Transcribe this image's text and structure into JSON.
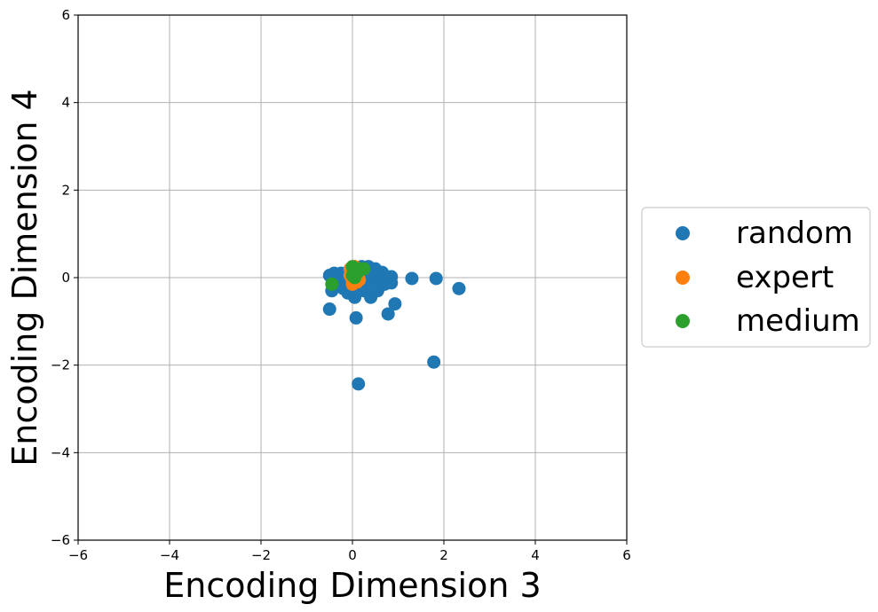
{
  "chart_data": {
    "type": "scatter",
    "xlabel": "Encoding Dimension 3",
    "ylabel": "Encoding Dimension 4",
    "xlim": [
      -6,
      6
    ],
    "ylim": [
      -6,
      6
    ],
    "xticks": [
      -6,
      -4,
      -2,
      0,
      2,
      4,
      6
    ],
    "yticks": [
      -6,
      -4,
      -2,
      0,
      2,
      4,
      6
    ],
    "grid": true,
    "legend_placement": "outside-right",
    "series": [
      {
        "name": "random",
        "color": "#1f77b4",
        "points": [
          [
            -0.5,
            0.05
          ],
          [
            -0.4,
            0.1
          ],
          [
            -0.35,
            -0.05
          ],
          [
            -0.3,
            0.0
          ],
          [
            -0.25,
            0.1
          ],
          [
            -0.2,
            -0.1
          ],
          [
            -0.15,
            0.05
          ],
          [
            -0.1,
            0.0
          ],
          [
            -0.05,
            -0.2
          ],
          [
            0.0,
            0.1
          ],
          [
            0.05,
            0.15
          ],
          [
            0.1,
            -0.05
          ],
          [
            0.15,
            0.2
          ],
          [
            0.2,
            0.1
          ],
          [
            0.25,
            0.05
          ],
          [
            0.3,
            -0.1
          ],
          [
            0.35,
            0.15
          ],
          [
            0.4,
            0.2
          ],
          [
            0.45,
            0.05
          ],
          [
            0.5,
            0.0
          ],
          [
            0.55,
            0.1
          ],
          [
            0.6,
            -0.05
          ],
          [
            0.65,
            0.12
          ],
          [
            0.7,
            0.05
          ],
          [
            0.75,
            0.0
          ],
          [
            0.8,
            -0.05
          ],
          [
            0.85,
            0.02
          ],
          [
            0.2,
            0.25
          ],
          [
            0.35,
            0.25
          ],
          [
            0.5,
            0.2
          ],
          [
            -0.45,
            -0.3
          ],
          [
            -0.2,
            -0.25
          ],
          [
            -0.1,
            -0.35
          ],
          [
            0.05,
            -0.45
          ],
          [
            0.25,
            -0.3
          ],
          [
            0.4,
            -0.45
          ],
          [
            0.55,
            -0.3
          ],
          [
            0.6,
            -0.2
          ],
          [
            0.7,
            -0.15
          ],
          [
            0.85,
            -0.12
          ],
          [
            0.3,
            -0.15
          ],
          [
            0.1,
            -0.25
          ],
          [
            -0.3,
            -0.15
          ],
          [
            0.45,
            -0.2
          ],
          [
            0.15,
            0.0
          ],
          [
            -0.5,
            -0.72
          ],
          [
            0.08,
            -0.92
          ],
          [
            0.78,
            -0.83
          ],
          [
            0.93,
            -0.6
          ],
          [
            1.3,
            -0.02
          ],
          [
            1.83,
            -0.02
          ],
          [
            2.33,
            -0.25
          ],
          [
            1.78,
            -1.93
          ],
          [
            0.13,
            -2.43
          ]
        ]
      },
      {
        "name": "expert",
        "color": "#ff7f0e",
        "points": [
          [
            -0.05,
            0.2
          ],
          [
            0.0,
            0.15
          ],
          [
            0.05,
            0.1
          ],
          [
            0.1,
            0.0
          ],
          [
            0.0,
            -0.05
          ],
          [
            0.05,
            -0.1
          ],
          [
            0.1,
            -0.1
          ],
          [
            0.15,
            -0.05
          ],
          [
            -0.05,
            0.05
          ],
          [
            0.0,
            -0.15
          ],
          [
            0.1,
            0.2
          ],
          [
            0.05,
            0.25
          ]
        ]
      },
      {
        "name": "medium",
        "color": "#2ca02c",
        "points": [
          [
            -0.45,
            -0.15
          ],
          [
            0.0,
            0.25
          ],
          [
            0.02,
            0.2
          ],
          [
            0.05,
            0.15
          ],
          [
            0.1,
            0.1
          ],
          [
            0.05,
            0.0
          ],
          [
            0.0,
            0.05
          ],
          [
            0.25,
            0.2
          ],
          [
            0.15,
            0.2
          ],
          [
            0.03,
            0.1
          ]
        ]
      }
    ]
  }
}
